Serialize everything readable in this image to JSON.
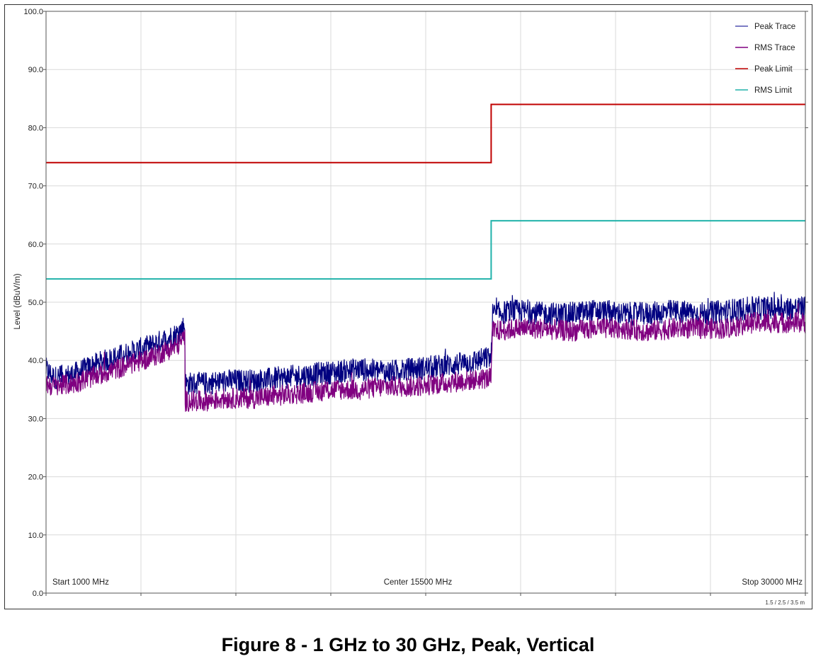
{
  "caption": "Figure 8 - 1 GHz to 30 GHz, Peak, Vertical",
  "chart_data": {
    "type": "line",
    "ylabel": "Level (dBuV/m)",
    "xlabel": "",
    "xlim_mhz": [
      1000,
      30000
    ],
    "ylim": [
      0,
      100
    ],
    "y_ticks": [
      "0.0",
      "10.0",
      "20.0",
      "30.0",
      "40.0",
      "50.0",
      "60.0",
      "70.0",
      "80.0",
      "90.0",
      "100.0"
    ],
    "x_gridlines_mhz": [
      1000,
      4625,
      8250,
      11875,
      15500,
      19125,
      22750,
      26375,
      30000
    ],
    "grid": true,
    "legend_position": "top-right",
    "inner_labels": {
      "start": "Start 1000 MHz",
      "center": "Center 15500 MHz",
      "stop": "Stop 30000 MHz"
    },
    "footnote": "1.5 / 2.5 / 3.5 m",
    "series": [
      {
        "name": "Peak Trace",
        "color": "#000080",
        "kind": "trace",
        "x": [
          1000,
          1300,
          2000,
          3000,
          4000,
          5000,
          6000,
          6300,
          6310,
          7000,
          8000,
          9000,
          10000,
          11000,
          12000,
          13000,
          14000,
          15000,
          16000,
          17000,
          18000,
          18050,
          19000,
          20000,
          21000,
          22000,
          23000,
          24000,
          25000,
          26000,
          27000,
          28000,
          29000,
          30000
        ],
        "y": [
          38.5,
          37.0,
          37.5,
          39.5,
          41.0,
          42.5,
          44.5,
          46.0,
          36.0,
          36.0,
          36.5,
          36.5,
          37.0,
          37.5,
          38.0,
          38.5,
          38.0,
          38.5,
          39.0,
          39.5,
          40.5,
          48.0,
          48.5,
          48.0,
          48.0,
          48.5,
          48.0,
          48.0,
          48.5,
          48.0,
          48.5,
          49.0,
          49.0,
          49.0
        ]
      },
      {
        "name": "RMS Trace",
        "color": "#800080",
        "kind": "trace",
        "x": [
          1000,
          1300,
          2000,
          3000,
          4000,
          5000,
          6000,
          6300,
          6310,
          7000,
          8000,
          9000,
          10000,
          11000,
          12000,
          13000,
          14000,
          15000,
          16000,
          17000,
          18000,
          18050,
          19000,
          20000,
          21000,
          22000,
          23000,
          24000,
          25000,
          26000,
          27000,
          28000,
          29000,
          30000
        ],
        "y": [
          36.0,
          35.5,
          36.0,
          37.5,
          39.0,
          40.5,
          42.5,
          44.0,
          33.0,
          33.0,
          33.5,
          33.5,
          34.0,
          34.5,
          35.0,
          35.0,
          35.5,
          35.5,
          36.0,
          36.5,
          37.0,
          45.0,
          45.5,
          45.5,
          45.0,
          45.5,
          45.5,
          45.0,
          45.5,
          45.5,
          45.5,
          46.5,
          46.5,
          46.5
        ]
      },
      {
        "name": "Peak Limit",
        "color": "#c00000",
        "kind": "limit",
        "x": [
          1000,
          18000,
          18000,
          30000
        ],
        "y": [
          74.0,
          74.0,
          84.0,
          84.0
        ]
      },
      {
        "name": "RMS Limit",
        "color": "#20b2aa",
        "kind": "limit",
        "x": [
          1000,
          18000,
          18000,
          30000
        ],
        "y": [
          54.0,
          54.0,
          64.0,
          64.0
        ]
      }
    ]
  }
}
